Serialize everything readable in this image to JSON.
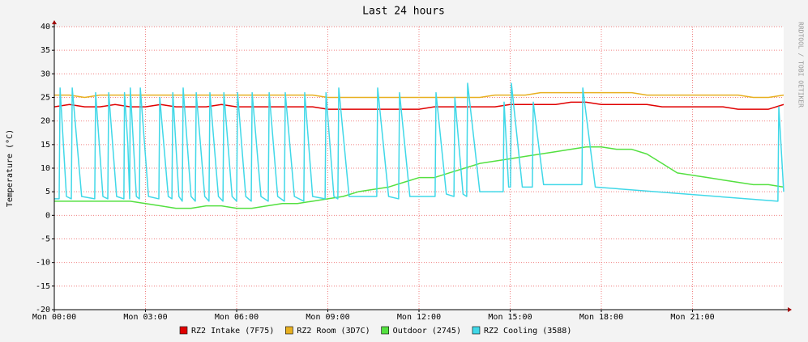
{
  "chart_data": {
    "type": "line",
    "title": "Last 24 hours",
    "y_label": "Temperature (°C)",
    "watermark": "RRDTOOL / TOBI OETIKER",
    "grid": true,
    "xlim": [
      0,
      24
    ],
    "xticks": [
      {
        "value": 0,
        "label": "Mon 00:00"
      },
      {
        "value": 3,
        "label": "Mon 03:00"
      },
      {
        "value": 6,
        "label": "Mon 06:00"
      },
      {
        "value": 9,
        "label": "Mon 09:00"
      },
      {
        "value": 12,
        "label": "Mon 12:00"
      },
      {
        "value": 15,
        "label": "Mon 15:00"
      },
      {
        "value": 18,
        "label": "Mon 18:00"
      },
      {
        "value": 21,
        "label": "Mon 21:00"
      }
    ],
    "ylim": [
      -20,
      40
    ],
    "yticks": [
      -20,
      -15,
      -10,
      -5,
      0,
      5,
      10,
      15,
      20,
      25,
      30,
      35,
      40
    ],
    "x": [
      0,
      0.5,
      1,
      1.5,
      2,
      2.5,
      3,
      3.5,
      4,
      4.5,
      5,
      5.5,
      6,
      6.5,
      7,
      7.5,
      8,
      8.5,
      9,
      9.5,
      10,
      10.5,
      11,
      11.5,
      12,
      12.5,
      13,
      13.5,
      14,
      14.5,
      15,
      15.5,
      16,
      16.5,
      17,
      17.5,
      18,
      18.5,
      19,
      19.5,
      20,
      20.5,
      21,
      21.5,
      22,
      22.5,
      23,
      23.5,
      24
    ],
    "series": [
      {
        "name": "RZ2 Intake (7F75)",
        "color": "#e00000",
        "values": [
          23,
          23.5,
          23,
          23,
          23.5,
          23,
          23,
          23.5,
          23,
          23,
          23,
          23.5,
          23,
          23,
          23,
          23,
          23,
          23,
          22.5,
          22.5,
          22.5,
          22.5,
          22.5,
          22.5,
          22.5,
          23,
          23,
          23,
          23,
          23,
          23.5,
          23.5,
          23.5,
          23.5,
          24,
          24,
          23.5,
          23.5,
          23.5,
          23.5,
          23,
          23,
          23,
          23,
          23,
          22.5,
          22.5,
          22.5,
          23.5
        ]
      },
      {
        "name": "RZ2 Room (3D7C)",
        "color": "#e8b020",
        "values": [
          25.5,
          25.5,
          25,
          25.5,
          25.5,
          25.5,
          25.5,
          25.5,
          25.5,
          25.5,
          25.5,
          25.5,
          25.5,
          25.5,
          25.5,
          25.5,
          25.5,
          25.5,
          25,
          25,
          25,
          25,
          25,
          25,
          25,
          25,
          25,
          25,
          25,
          25.5,
          25.5,
          25.5,
          26,
          26,
          26,
          26,
          26,
          26,
          26,
          25.5,
          25.5,
          25.5,
          25.5,
          25.5,
          25.5,
          25.5,
          25,
          25,
          25.5
        ]
      },
      {
        "name": "Outdoor (2745)",
        "color": "#54e040",
        "values": [
          3,
          3,
          3,
          3,
          3,
          3,
          2.5,
          2,
          1.5,
          1.5,
          2,
          2,
          1.5,
          1.5,
          2,
          2.5,
          2.5,
          3,
          3.5,
          4,
          5,
          5.5,
          6,
          7,
          8,
          8,
          9,
          10,
          11,
          11.5,
          12,
          12.5,
          13,
          13.5,
          14,
          14.5,
          14.5,
          14,
          14,
          13,
          11,
          9,
          8.5,
          8,
          7.5,
          7,
          6.5,
          6.5,
          6
        ]
      },
      {
        "name": "RZ2 Cooling (3588)",
        "color": "#40d8e8",
        "x": [
          0,
          0.16,
          0.19,
          0.4,
          0.56,
          0.59,
          0.9,
          1.33,
          1.36,
          1.6,
          1.76,
          1.79,
          2.05,
          2.29,
          2.31,
          2.42,
          2.48,
          2.5,
          2.7,
          2.8,
          2.83,
          3.1,
          3.44,
          3.47,
          3.75,
          3.87,
          3.9,
          4.1,
          4.21,
          4.24,
          4.5,
          4.64,
          4.67,
          4.95,
          5.09,
          5.12,
          5.4,
          5.55,
          5.58,
          5.85,
          6.0,
          6.03,
          6.3,
          6.48,
          6.51,
          6.8,
          7.04,
          7.07,
          7.35,
          7.57,
          7.6,
          7.9,
          8.21,
          8.24,
          8.5,
          8.91,
          8.94,
          9.2,
          9.33,
          9.36,
          9.7,
          10.61,
          10.64,
          11.0,
          11.33,
          11.36,
          11.7,
          12.53,
          12.56,
          12.9,
          13.15,
          13.18,
          13.45,
          13.57,
          13.6,
          14.0,
          14.77,
          14.8,
          14.95,
          15.01,
          15.04,
          15.4,
          15.73,
          15.76,
          16.1,
          17.36,
          17.39,
          17.8,
          23.81,
          23.84,
          24
        ],
        "values": [
          3.5,
          3.5,
          27,
          4,
          3.5,
          27,
          4,
          3.5,
          26,
          4,
          3.5,
          26,
          4,
          3.5,
          26,
          15,
          3.5,
          27,
          4,
          3.5,
          27,
          4,
          3.5,
          25,
          4,
          3.5,
          26,
          4,
          3,
          27,
          4,
          3,
          26,
          4,
          3,
          26,
          4,
          3,
          26,
          4,
          3,
          26,
          4,
          3,
          26,
          4,
          3,
          26,
          4,
          3,
          26,
          4,
          3,
          26,
          4,
          3.5,
          26,
          4,
          3.5,
          27,
          4,
          4,
          27,
          4,
          3.5,
          26,
          4,
          4,
          26,
          4.5,
          4,
          25,
          4.5,
          4,
          28,
          5,
          5,
          24,
          6,
          6,
          28,
          6,
          6,
          24,
          6.5,
          6.5,
          27,
          6,
          3,
          23,
          5
        ]
      }
    ]
  }
}
